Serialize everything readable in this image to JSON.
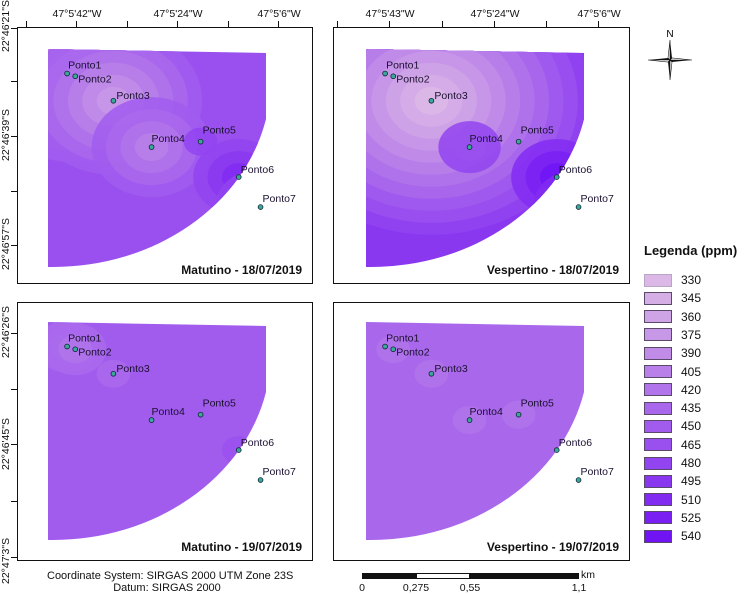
{
  "legend": {
    "title": "Legenda (ppm)",
    "classes": [
      {
        "value": "330",
        "color": "#dcb8e6"
      },
      {
        "value": "345",
        "color": "#d6aee6"
      },
      {
        "value": "360",
        "color": "#cfa4e6"
      },
      {
        "value": "375",
        "color": "#c898e8"
      },
      {
        "value": "390",
        "color": "#c18ce8"
      },
      {
        "value": "405",
        "color": "#b980ea"
      },
      {
        "value": "420",
        "color": "#b174ea"
      },
      {
        "value": "435",
        "color": "#a968ec"
      },
      {
        "value": "450",
        "color": "#a15cee"
      },
      {
        "value": "465",
        "color": "#9a50ee"
      },
      {
        "value": "480",
        "color": "#9244f0"
      },
      {
        "value": "495",
        "color": "#8a38f0"
      },
      {
        "value": "510",
        "color": "#822cf2"
      },
      {
        "value": "525",
        "color": "#7a20f2"
      },
      {
        "value": "540",
        "color": "#7014f4"
      }
    ]
  },
  "panels": [
    {
      "title": "Matutino - 18/07/2019",
      "x_ticks": [
        "47°5'42\"W",
        "47°5'24\"W",
        "47°5'6\"W"
      ],
      "y_ticks": [
        "22°46'21\"S",
        "22°46'39\"S",
        "22°46'57\"S"
      ],
      "base_class": 9,
      "points": [
        {
          "label": "Ponto1",
          "class": 2
        },
        {
          "label": "Ponto2",
          "class": 2
        },
        {
          "label": "Ponto3",
          "class": 3
        },
        {
          "label": "Ponto4",
          "class": 5
        },
        {
          "label": "Ponto5",
          "class": 10
        },
        {
          "label": "Ponto6",
          "class": 12
        },
        {
          "label": "Ponto7",
          "class": 12
        }
      ]
    },
    {
      "title": "Vespertino - 18/07/2019",
      "x_ticks": [
        "47°5'43\"W",
        "47°5'24\"W",
        "47°5'6\"W"
      ],
      "y_ticks": [],
      "base_class": 11,
      "points": [
        {
          "label": "Ponto1",
          "class": 1
        },
        {
          "label": "Ponto2",
          "class": 1
        },
        {
          "label": "Ponto3",
          "class": 0
        },
        {
          "label": "Ponto4",
          "class": 9
        },
        {
          "label": "Ponto5",
          "class": 11
        },
        {
          "label": "Ponto6",
          "class": 14
        },
        {
          "label": "Ponto7",
          "class": 14
        }
      ]
    },
    {
      "title": "Matutino - 19/07/2019",
      "x_ticks": [],
      "y_ticks": [
        "22°46'26\"S",
        "22°46'45\"S",
        "22°47'3\"S"
      ],
      "base_class": 8,
      "points": [
        {
          "label": "Ponto1",
          "class": 6
        },
        {
          "label": "Ponto2",
          "class": 6
        },
        {
          "label": "Ponto3",
          "class": 7
        },
        {
          "label": "Ponto4",
          "class": 8
        },
        {
          "label": "Ponto5",
          "class": 8
        },
        {
          "label": "Ponto6",
          "class": 9
        },
        {
          "label": "Ponto7",
          "class": 9
        }
      ]
    },
    {
      "title": "Vespertino - 19/07/2019",
      "x_ticks": [],
      "y_ticks": [],
      "base_class": 7,
      "points": [
        {
          "label": "Ponto1",
          "class": 7
        },
        {
          "label": "Ponto2",
          "class": 6
        },
        {
          "label": "Ponto3",
          "class": 6
        },
        {
          "label": "Ponto4",
          "class": 6
        },
        {
          "label": "Ponto5",
          "class": 6
        },
        {
          "label": "Ponto6",
          "class": 7
        },
        {
          "label": "Ponto7",
          "class": 9
        }
      ]
    }
  ],
  "north_label": "N",
  "footer": {
    "coordinate_system": "Coordinate System: SIRGAS 2000 UTM Zone 23S",
    "datum": "Datum: SIRGAS 2000"
  },
  "scale_bar": {
    "unit": "km",
    "labels": [
      "0",
      "0,275",
      "0,55",
      "1,1"
    ]
  }
}
